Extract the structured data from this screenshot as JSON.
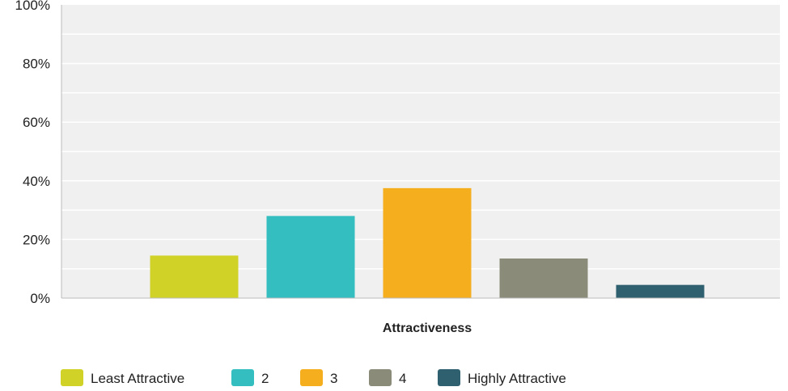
{
  "chart_data": {
    "type": "bar",
    "title": "",
    "xlabel": "Attractiveness",
    "ylabel": "",
    "ylim": [
      0,
      100
    ],
    "yticks": [
      "0%",
      "20%",
      "40%",
      "60%",
      "80%",
      "100%"
    ],
    "ytick_values": [
      0,
      20,
      40,
      60,
      80,
      100
    ],
    "grid": true,
    "legend_position": "bottom-left",
    "categories": [
      "Least Attractive",
      "2",
      "3",
      "4",
      "Highly Attractive"
    ],
    "values": [
      14.5,
      28,
      37.5,
      13.5,
      4.5
    ],
    "colors": [
      "#D0D227",
      "#34BEBF",
      "#F5AE1E",
      "#8A8B79",
      "#2F6070"
    ],
    "plot_background": "#F0F0F0",
    "gridline_color": "#FFFFFF"
  }
}
